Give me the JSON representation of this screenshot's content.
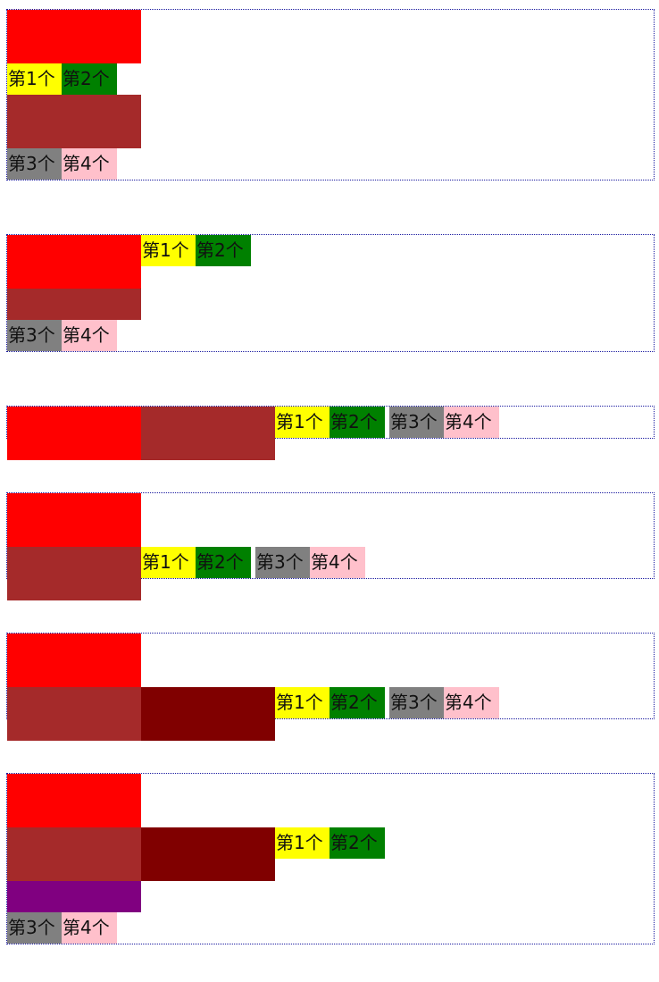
{
  "labels": {
    "item1": "第1个",
    "item2": "第2个",
    "item3": "第3个",
    "item4": "第4个"
  },
  "colors": {
    "block_red": "#ff0000",
    "block_brown": "#a52a2a",
    "block_maroon": "#800000",
    "block_purple": "#800080",
    "label1": "#ffff00",
    "label2": "#008000",
    "label3": "#808080",
    "label4": "#ffc0cb",
    "frame_border": "#1a1aa0"
  }
}
